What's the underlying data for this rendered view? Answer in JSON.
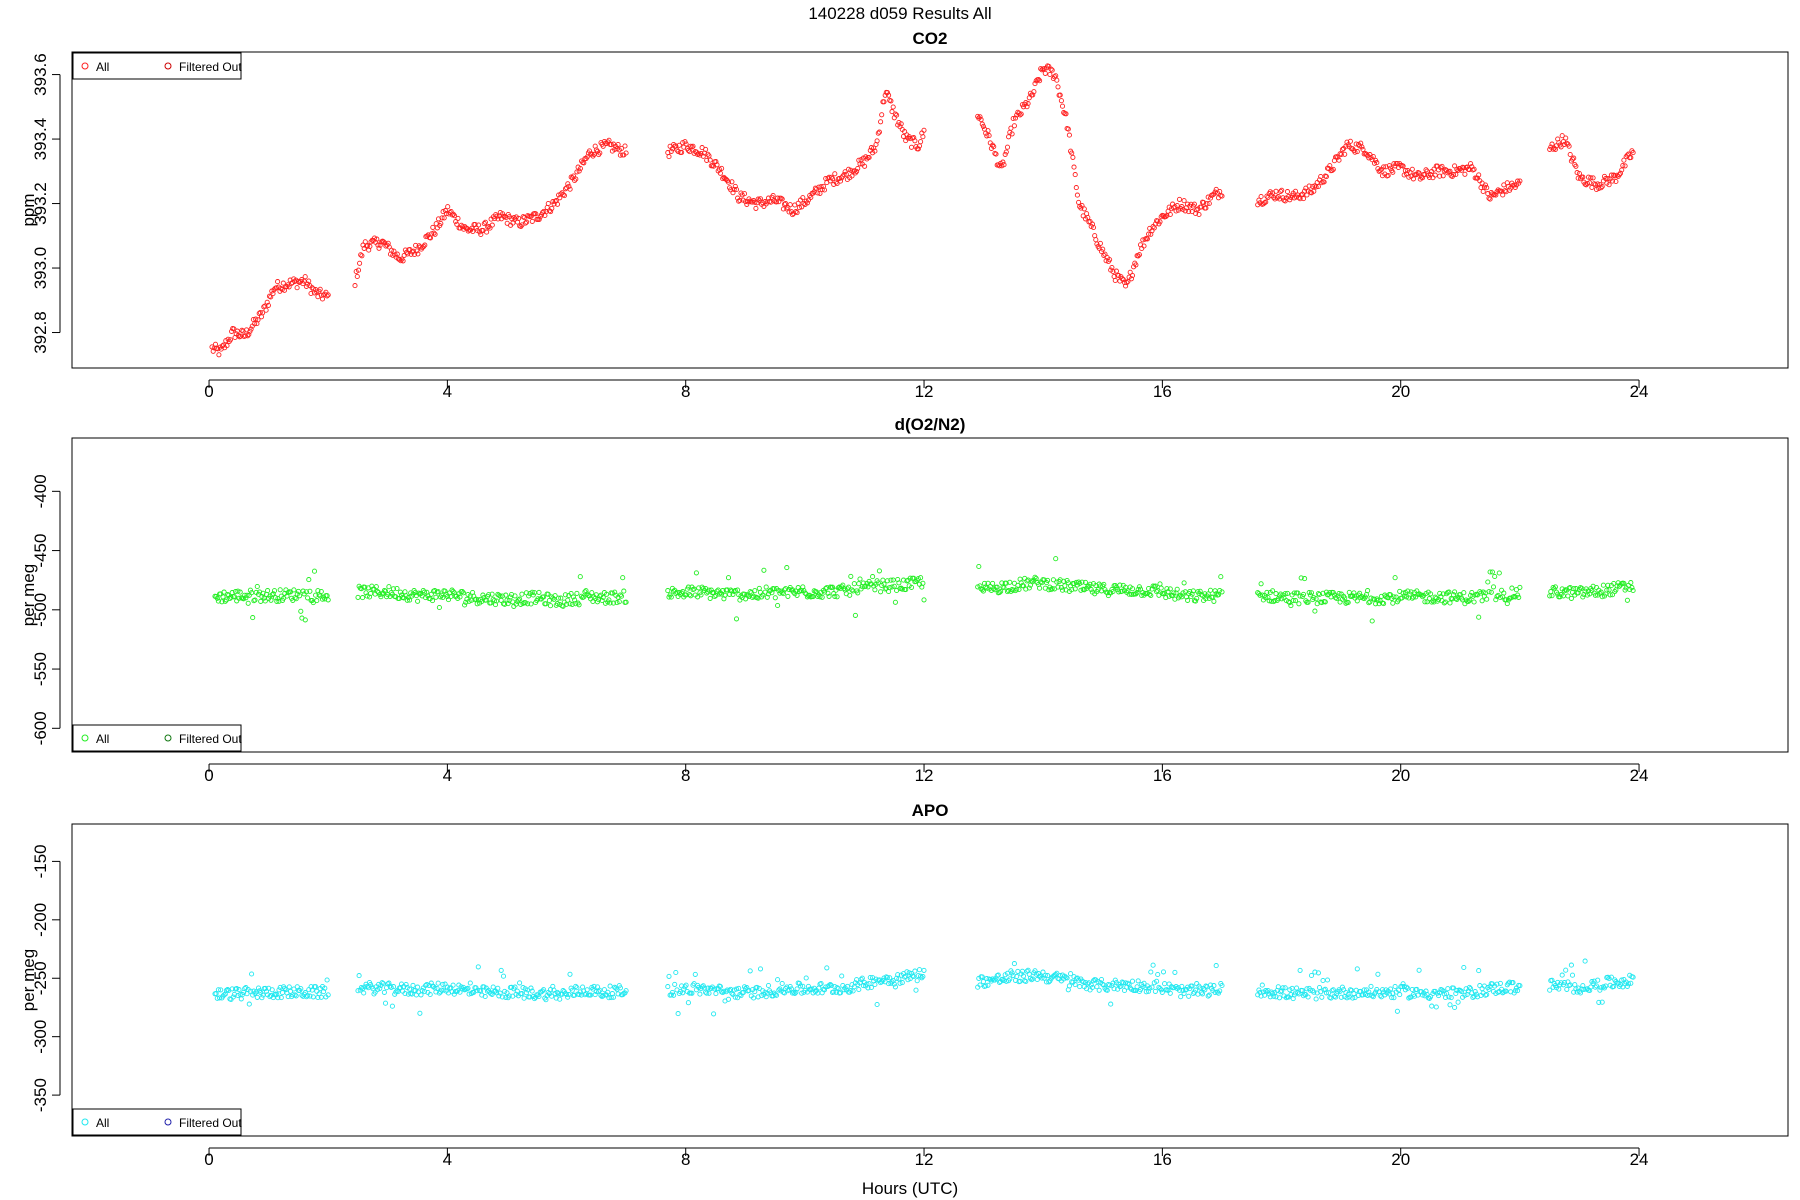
{
  "page_title": "140228   d059   Results All",
  "xlabel": "Hours (UTC)",
  "chart_data": [
    {
      "type": "scatter",
      "title": "CO2",
      "ylabel": "ppm",
      "xlim": [
        -2.3,
        26.5
      ],
      "ylim": [
        392.69,
        393.67
      ],
      "xticks": [
        0,
        4,
        8,
        12,
        16,
        20,
        24
      ],
      "yticks": [
        392.8,
        393.0,
        393.2,
        393.4,
        393.6
      ],
      "ytick_labels": [
        "392.8",
        "393.0",
        "393.2",
        "393.4",
        "393.6"
      ],
      "legend": {
        "position": "top-left",
        "entries": [
          "All",
          "Filtered Out"
        ]
      },
      "colors": {
        "all": "#ff2020",
        "filtered": "#cc0000"
      },
      "series": [
        {
          "name": "All",
          "x": [
            0.05,
            0.2,
            0.4,
            0.6,
            0.9,
            1.1,
            1.3,
            1.6,
            1.8,
            2.0
          ],
          "y": [
            392.75,
            392.74,
            392.8,
            392.79,
            392.86,
            392.94,
            392.95,
            392.96,
            392.92,
            392.91
          ]
        },
        {
          "name": "All",
          "x": [
            2.45,
            2.6,
            2.9,
            3.2,
            3.5,
            3.8,
            4.0,
            4.3,
            4.6,
            4.9,
            5.2,
            5.5,
            5.8,
            6.1,
            6.4,
            6.7,
            7.0
          ],
          "y": [
            392.96,
            393.07,
            393.08,
            393.03,
            393.06,
            393.12,
            393.18,
            393.12,
            393.12,
            393.16,
            393.14,
            393.16,
            393.2,
            393.27,
            393.36,
            393.38,
            393.36
          ]
        },
        {
          "name": "All",
          "x": [
            7.7,
            8.0,
            8.3,
            8.6,
            8.9,
            9.2,
            9.5,
            9.8,
            10.1,
            10.4,
            10.7,
            11.0,
            11.2,
            11.35,
            11.5,
            11.7,
            11.9,
            12.0
          ],
          "y": [
            393.36,
            393.38,
            393.36,
            393.3,
            393.22,
            393.2,
            393.21,
            393.18,
            393.22,
            393.27,
            393.29,
            393.33,
            393.38,
            393.55,
            393.48,
            393.4,
            393.38,
            393.42
          ]
        },
        {
          "name": "All",
          "x": [
            12.9,
            13.1,
            13.3,
            13.5,
            13.8,
            14.0,
            14.2,
            14.4,
            14.6,
            14.8,
            15.0,
            15.2,
            15.4,
            15.6,
            15.8,
            16.0,
            16.3,
            16.6,
            16.9,
            17.0
          ],
          "y": [
            393.48,
            393.4,
            393.3,
            393.45,
            393.53,
            393.62,
            393.6,
            393.45,
            393.2,
            393.13,
            393.05,
            392.98,
            392.94,
            393.05,
            393.12,
            393.16,
            393.2,
            393.18,
            393.23,
            393.24
          ]
        },
        {
          "name": "All",
          "x": [
            17.6,
            17.9,
            18.2,
            18.5,
            18.8,
            19.1,
            19.4,
            19.7,
            20.0,
            20.3,
            20.6,
            20.9,
            21.2,
            21.5,
            21.8,
            22.0
          ],
          "y": [
            393.21,
            393.23,
            393.22,
            393.24,
            393.3,
            393.38,
            393.37,
            393.3,
            393.31,
            393.28,
            393.3,
            393.3,
            393.31,
            393.22,
            393.25,
            393.26
          ]
        },
        {
          "name": "All",
          "x": [
            22.5,
            22.75,
            23.0,
            23.3,
            23.6,
            23.9
          ],
          "y": [
            393.37,
            393.4,
            393.28,
            393.26,
            393.28,
            393.36
          ]
        }
      ]
    },
    {
      "type": "scatter",
      "title": "d(O2/N2)",
      "ylabel": "per meg",
      "xlim": [
        -2.3,
        26.5
      ],
      "ylim": [
        -620,
        -355
      ],
      "xticks": [
        0,
        4,
        8,
        12,
        16,
        20,
        24
      ],
      "yticks": [
        -400,
        -450,
        -500,
        -550,
        -600
      ],
      "ytick_labels": [
        "-400",
        "-450",
        "-500",
        "-550",
        "-600"
      ],
      "legend": {
        "position": "bottom-left",
        "entries": [
          "All",
          "Filtered Out"
        ]
      },
      "colors": {
        "all": "#22ee22",
        "filtered": "#117711"
      },
      "series": [
        {
          "name": "All",
          "x": [
            0.1,
            0.6,
            1.1,
            1.6,
            2.0
          ],
          "y": [
            -489,
            -488,
            -488,
            -487,
            -488
          ]
        },
        {
          "name": "All",
          "x": [
            2.5,
            3.0,
            3.5,
            4.0,
            4.5,
            5.0,
            5.5,
            5.9,
            6.3,
            6.6,
            7.0
          ],
          "y": [
            -485,
            -485,
            -488,
            -487,
            -490,
            -491,
            -490,
            -493,
            -488,
            -490,
            -489
          ]
        },
        {
          "name": "All",
          "x": [
            7.7,
            8.2,
            8.7,
            9.2,
            9.7,
            10.2,
            10.7,
            11.2,
            11.7,
            12.0
          ],
          "y": [
            -486,
            -485,
            -487,
            -487,
            -485,
            -485,
            -484,
            -480,
            -479,
            -476
          ]
        },
        {
          "name": "All",
          "x": [
            12.9,
            13.4,
            13.9,
            14.4,
            14.9,
            15.4,
            15.9,
            16.4,
            16.9,
            17.0
          ],
          "y": [
            -483,
            -480,
            -477,
            -480,
            -483,
            -483,
            -484,
            -489,
            -488,
            -487
          ]
        },
        {
          "name": "All",
          "x": [
            17.6,
            18.1,
            18.6,
            19.1,
            19.6,
            20.1,
            20.6,
            21.1,
            21.5,
            21.8,
            22.0
          ],
          "y": [
            -487,
            -490,
            -490,
            -490,
            -490,
            -489,
            -489,
            -490,
            -488,
            -487,
            -486
          ]
        },
        {
          "name": "All",
          "x": [
            22.5,
            23.0,
            23.5,
            23.9
          ],
          "y": [
            -485,
            -486,
            -483,
            -480
          ]
        }
      ]
    },
    {
      "type": "scatter",
      "title": "APO",
      "ylabel": "per meg",
      "xlim": [
        -2.3,
        26.5
      ],
      "ylim": [
        -385,
        -118
      ],
      "xticks": [
        0,
        4,
        8,
        12,
        16,
        20,
        24
      ],
      "yticks": [
        -150,
        -200,
        -250,
        -300,
        -350
      ],
      "ytick_labels": [
        "-150",
        "-200",
        "-250",
        "-300",
        "-350"
      ],
      "legend": {
        "position": "bottom-left",
        "entries": [
          "All",
          "Filtered Out"
        ]
      },
      "colors": {
        "all": "#20e8f0",
        "filtered": "#2020aa"
      },
      "series": [
        {
          "name": "All",
          "x": [
            0.1,
            0.6,
            1.1,
            1.6,
            2.0
          ],
          "y": [
            -264,
            -263,
            -262,
            -262,
            -262
          ]
        },
        {
          "name": "All",
          "x": [
            2.5,
            3.0,
            3.5,
            4.0,
            4.5,
            5.0,
            5.5,
            5.9,
            6.3,
            6.6,
            7.0
          ],
          "y": [
            -258,
            -259,
            -260,
            -258,
            -262,
            -262,
            -263,
            -264,
            -260,
            -262,
            -261
          ]
        },
        {
          "name": "All",
          "x": [
            7.7,
            8.2,
            8.7,
            9.2,
            9.7,
            10.2,
            10.7,
            11.2,
            11.7,
            12.0
          ],
          "y": [
            -260,
            -259,
            -262,
            -262,
            -259,
            -259,
            -258,
            -252,
            -249,
            -246
          ]
        },
        {
          "name": "All",
          "x": [
            12.9,
            13.4,
            13.9,
            14.4,
            14.9,
            15.4,
            15.9,
            16.4,
            16.9,
            17.0
          ],
          "y": [
            -253,
            -250,
            -247,
            -252,
            -256,
            -256,
            -257,
            -262,
            -260,
            -259
          ]
        },
        {
          "name": "All",
          "x": [
            17.6,
            18.1,
            18.6,
            19.1,
            19.6,
            20.1,
            20.6,
            21.1,
            21.5,
            21.8,
            22.0
          ],
          "y": [
            -260,
            -263,
            -263,
            -262,
            -262,
            -262,
            -263,
            -263,
            -259,
            -258,
            -258
          ]
        },
        {
          "name": "All",
          "x": [
            22.5,
            23.0,
            23.5,
            23.9
          ],
          "y": [
            -256,
            -258,
            -254,
            -252
          ]
        }
      ]
    }
  ]
}
